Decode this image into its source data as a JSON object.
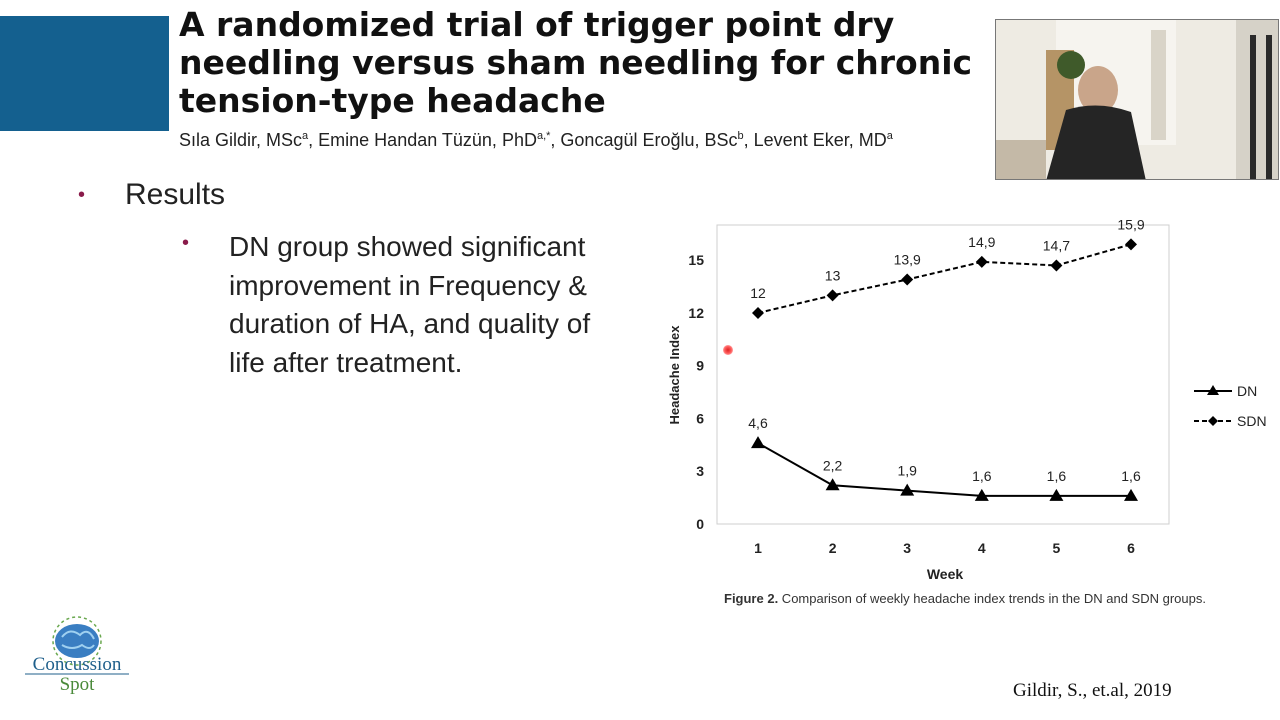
{
  "slide": {
    "title": "A randomized trial of trigger point dry needling versus sham needling for chronic tension-type headache",
    "authors": {
      "a1": "Sıla Gildir, MSc",
      "a1_sup": "a",
      "a2": ", Emine Handan Tüzün, PhD",
      "a2_sup": "a,*",
      "a3": ", Goncagül Eroğlu, BSc",
      "a3_sup": "b",
      "a4": ", Levent Eker, MD",
      "a4_sup": "a"
    },
    "bullet_heading": "Results",
    "bullet_sub": "DN group showed significant improvement in Frequency & duration of HA, and quality of life after treatment.",
    "caption_label": "Figure 2.",
    "caption_text": " Comparison of weekly headache index trends in the DN and SDN groups.",
    "citation": "Gildir, S., et.al, 2019",
    "logo_text_top": "Concussion",
    "logo_text_bottom": "Spot"
  },
  "chart_data": {
    "type": "line",
    "x": [
      1,
      2,
      3,
      4,
      5,
      6
    ],
    "xlabel": "Week",
    "ylabel": "Headache Index",
    "ylim": [
      0,
      17
    ],
    "yticks": [
      0,
      3,
      6,
      9,
      12,
      15
    ],
    "legend_position": "right",
    "series": [
      {
        "name": "DN",
        "values": [
          4.6,
          2.2,
          1.9,
          1.6,
          1.6,
          1.6
        ],
        "labels": [
          "4,6",
          "2,2",
          "1,9",
          "1,6",
          "1,6",
          "1,6"
        ],
        "marker": "triangle",
        "style": "solid"
      },
      {
        "name": "SDN",
        "values": [
          12,
          13,
          13.9,
          14.9,
          14.7,
          15.9
        ],
        "labels": [
          "12",
          "13",
          "13,9",
          "14,9",
          "14,7",
          "15,9"
        ],
        "marker": "diamond",
        "style": "dashed"
      }
    ]
  }
}
